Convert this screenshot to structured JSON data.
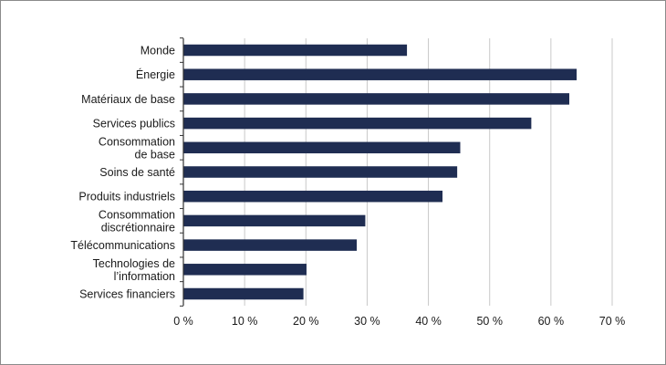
{
  "chart_data": {
    "type": "bar",
    "orientation": "horizontal",
    "title": "",
    "xlabel": "",
    "ylabel": "",
    "categories": [
      [
        "Monde"
      ],
      [
        "Énergie"
      ],
      [
        "Matériaux de base"
      ],
      [
        "Services publics"
      ],
      [
        "Consommation",
        "de base"
      ],
      [
        "Soins de santé"
      ],
      [
        "Produits industriels"
      ],
      [
        "Consommation",
        "discrétionnaire"
      ],
      [
        "Télécommunications"
      ],
      [
        "Technologies de",
        "l’information"
      ],
      [
        "Services financiers"
      ]
    ],
    "values": [
      36.5,
      64.2,
      63.0,
      56.8,
      45.2,
      44.7,
      42.3,
      29.7,
      28.3,
      20.1,
      19.6
    ],
    "xlim": [
      0,
      70
    ],
    "xticks": [
      0,
      10,
      20,
      30,
      40,
      50,
      60,
      70
    ],
    "xtick_labels": [
      "0 %",
      "10 %",
      "20 %",
      "30 %",
      "40 %",
      "50 %",
      "60 %",
      "70 %"
    ],
    "grid": "vertical",
    "legend": "none",
    "bar_color": "#1f2d52"
  }
}
